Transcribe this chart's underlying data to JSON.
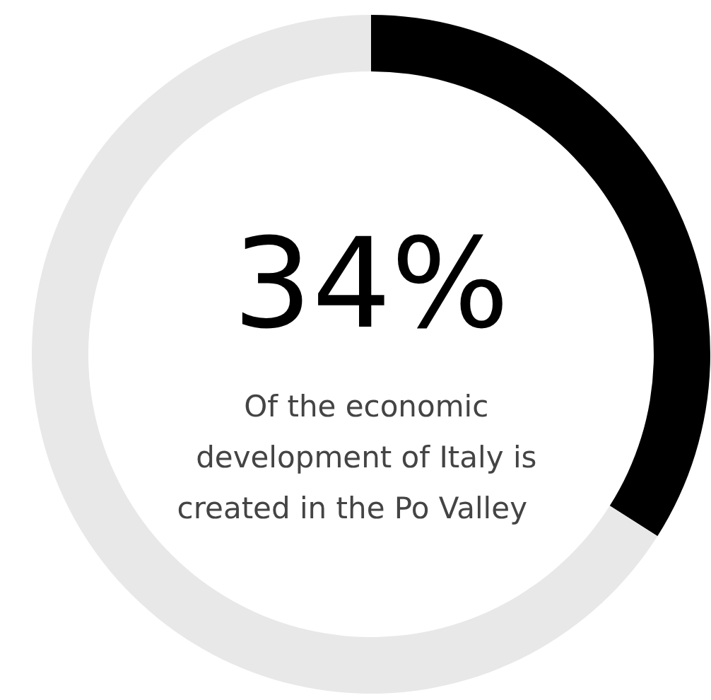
{
  "chart_data": {
    "type": "donut",
    "categories": [
      null,
      null
    ],
    "values": [
      34,
      66
    ],
    "colors": [
      "#000000",
      "#e8e8e8"
    ],
    "value_labels": [
      "34%",
      null
    ],
    "annotations": [
      "Of  the economic\ndevelopment of  Italy is\ncreated  in  the  Po  Valley"
    ]
  }
}
